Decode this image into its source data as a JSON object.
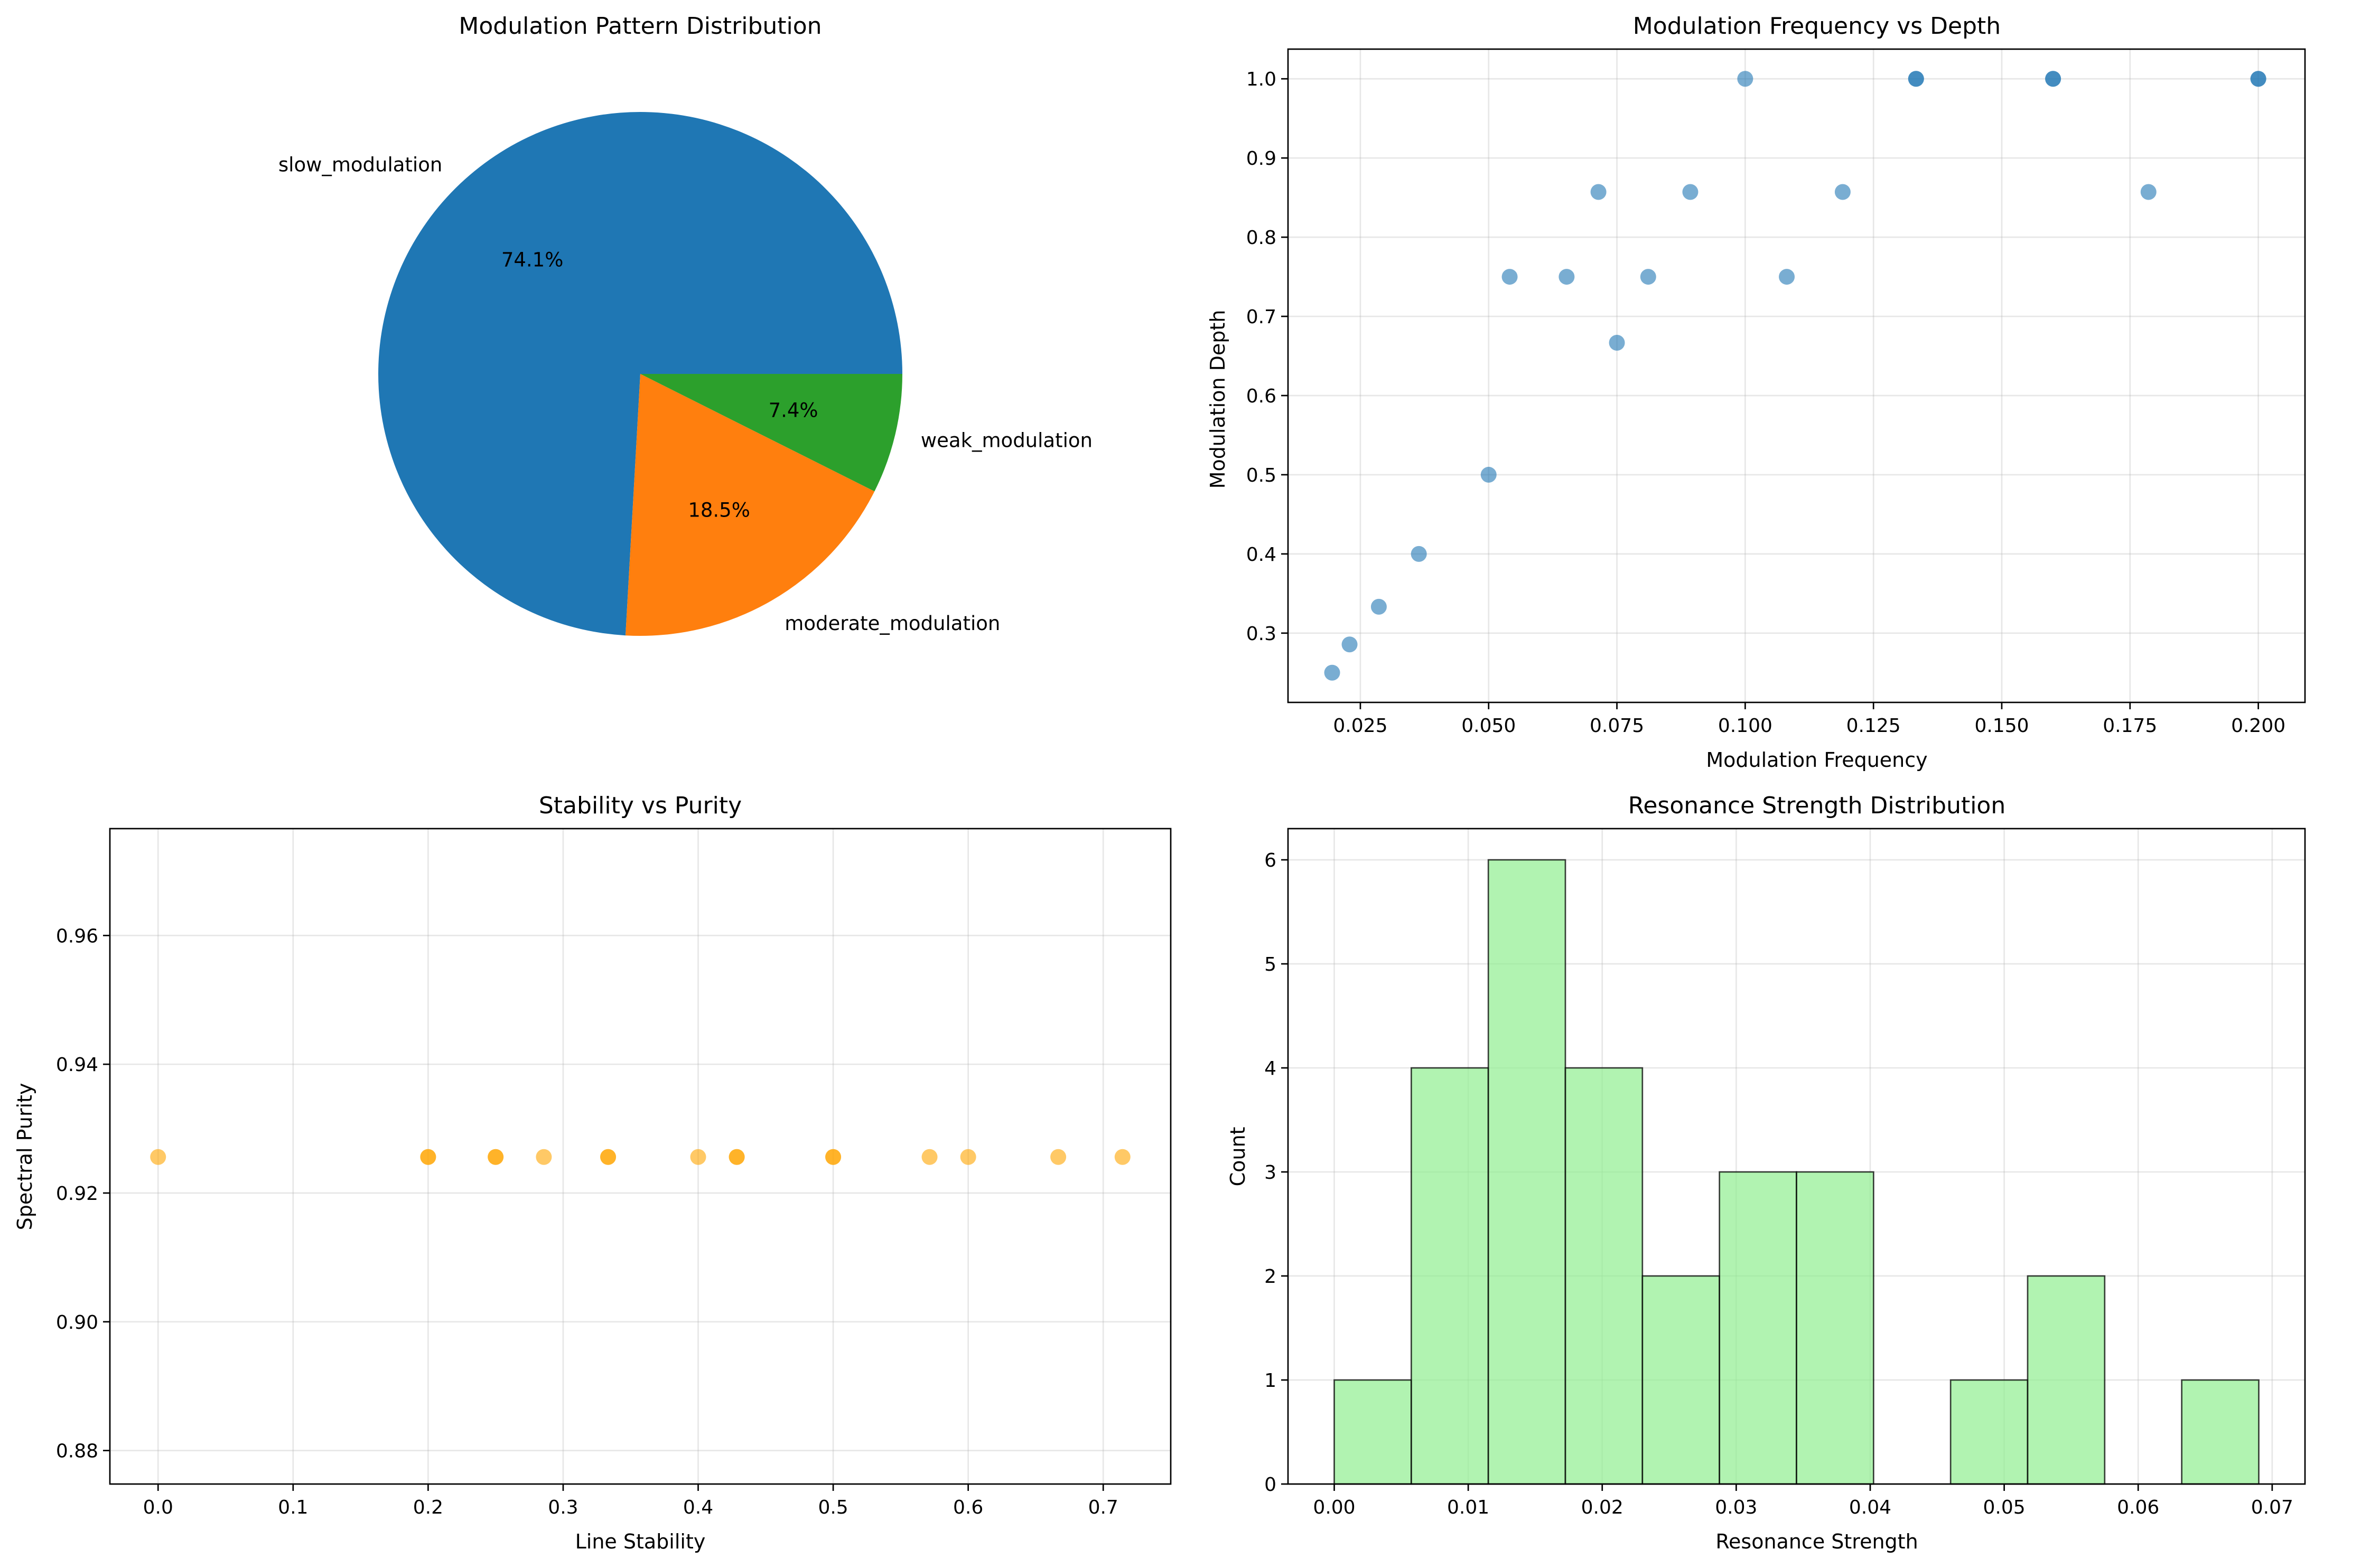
{
  "chart_data": [
    {
      "type": "pie",
      "title": "Modulation Pattern Distribution",
      "labels": [
        "slow_modulation",
        "moderate_modulation",
        "weak_modulation"
      ],
      "values": [
        74.1,
        18.5,
        7.4
      ],
      "pct_labels": [
        "74.1%",
        "18.5%",
        "7.4%"
      ],
      "colors": [
        "#1f77b4",
        "#ff7f0e",
        "#2ca02c"
      ]
    },
    {
      "type": "scatter",
      "title": "Modulation Frequency vs Depth",
      "xlabel": "Modulation Frequency",
      "ylabel": "Modulation Depth",
      "xlim": [
        0.0109,
        0.2091
      ],
      "ylim": [
        0.2125,
        1.0375
      ],
      "xticks": [
        0.025,
        0.05,
        0.075,
        0.1,
        0.125,
        0.15,
        0.175,
        0.2
      ],
      "xticklabels": [
        "0.025",
        "0.050",
        "0.075",
        "0.100",
        "0.125",
        "0.150",
        "0.175",
        "0.200"
      ],
      "yticks": [
        0.3,
        0.4,
        0.5,
        0.6,
        0.7,
        0.8,
        0.9,
        1.0
      ],
      "yticklabels": [
        "0.3",
        "0.4",
        "0.5",
        "0.6",
        "0.7",
        "0.8",
        "0.9",
        "1.0"
      ],
      "grid": true,
      "color": "#1f77b4",
      "points": [
        [
          0.0195,
          0.25
        ],
        [
          0.0229,
          0.2857
        ],
        [
          0.0286,
          0.3333
        ],
        [
          0.0364,
          0.4
        ],
        [
          0.05,
          0.5
        ],
        [
          0.0541,
          0.75
        ],
        [
          0.0652,
          0.75
        ],
        [
          0.0714,
          0.8571
        ],
        [
          0.075,
          0.6667
        ],
        [
          0.0811,
          0.75
        ],
        [
          0.0893,
          0.8571
        ],
        [
          0.1,
          1.0
        ],
        [
          0.1081,
          0.75
        ],
        [
          0.119,
          0.8571
        ],
        [
          0.1333,
          1.0
        ],
        [
          0.1333,
          1.0
        ],
        [
          0.16,
          1.0
        ],
        [
          0.16,
          1.0
        ],
        [
          0.1786,
          0.8571
        ],
        [
          0.2,
          1.0
        ],
        [
          0.2,
          1.0
        ]
      ]
    },
    {
      "type": "scatter",
      "title": "Stability vs Purity",
      "xlabel": "Line Stability",
      "ylabel": "Spectral Purity",
      "xlim": [
        -0.0357,
        0.75
      ],
      "ylim": [
        0.8748,
        0.9766
      ],
      "xticks": [
        0.0,
        0.1,
        0.2,
        0.3,
        0.4,
        0.5,
        0.6,
        0.7
      ],
      "xticklabels": [
        "0.0",
        "0.1",
        "0.2",
        "0.3",
        "0.4",
        "0.5",
        "0.6",
        "0.7"
      ],
      "yticks": [
        0.88,
        0.9,
        0.92,
        0.94,
        0.96
      ],
      "yticklabels": [
        "0.88",
        "0.90",
        "0.92",
        "0.94",
        "0.96"
      ],
      "grid": true,
      "color": "#ffa500",
      "points": [
        [
          0.0,
          0.9256
        ],
        [
          0.2,
          0.9256
        ],
        [
          0.2,
          0.9256
        ],
        [
          0.25,
          0.9256
        ],
        [
          0.25,
          0.9256
        ],
        [
          0.2857,
          0.9256
        ],
        [
          0.3333,
          0.9256
        ],
        [
          0.3333,
          0.9256
        ],
        [
          0.4,
          0.9256
        ],
        [
          0.4286,
          0.9256
        ],
        [
          0.4286,
          0.9256
        ],
        [
          0.5,
          0.9256
        ],
        [
          0.5,
          0.9256
        ],
        [
          0.5714,
          0.9256
        ],
        [
          0.6,
          0.9256
        ],
        [
          0.6667,
          0.9256
        ],
        [
          0.7143,
          0.9256
        ]
      ]
    },
    {
      "type": "bar",
      "title": "Resonance Strength Distribution",
      "xlabel": "Resonance Strength",
      "ylabel": "Count",
      "xlim": [
        -0.00345,
        0.07245
      ],
      "ylim": [
        0,
        6.3
      ],
      "xticks": [
        0.0,
        0.01,
        0.02,
        0.03,
        0.04,
        0.05,
        0.06,
        0.07
      ],
      "xticklabels": [
        "0.00",
        "0.01",
        "0.02",
        "0.03",
        "0.04",
        "0.05",
        "0.06",
        "0.07"
      ],
      "yticks": [
        0,
        1,
        2,
        3,
        4,
        5,
        6
      ],
      "yticklabels": [
        "0",
        "1",
        "2",
        "3",
        "4",
        "5",
        "6"
      ],
      "grid": true,
      "color": "#90ee90",
      "bin_edges": [
        0.0,
        0.00575,
        0.0115,
        0.01725,
        0.023,
        0.02875,
        0.0345,
        0.04025,
        0.046,
        0.05175,
        0.0575,
        0.06325,
        0.069
      ],
      "counts": [
        1,
        4,
        6,
        4,
        2,
        3,
        3,
        0,
        1,
        2,
        0,
        1
      ]
    }
  ]
}
